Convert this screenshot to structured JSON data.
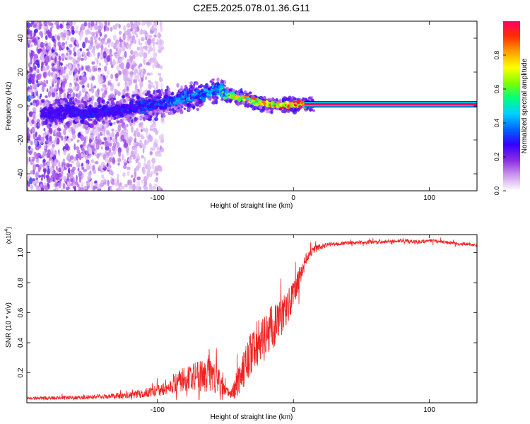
{
  "title": "C2E5.2025.078.01.36.G11",
  "chart_data": [
    {
      "type": "heatmap",
      "xlabel": "Height of straight line (km)",
      "ylabel": "Frequency (Hz)",
      "xlim": [
        -196,
        135
      ],
      "ylim": [
        -50,
        50
      ],
      "xticks": [
        -100,
        0,
        100
      ],
      "yticks": [
        -40,
        -20,
        0,
        20,
        40
      ],
      "colorbar": {
        "label": "Normalized spectral amplitude",
        "range": [
          0,
          1
        ],
        "ticks": [
          "0.0",
          "0.2",
          "0.4",
          "0.6",
          "0.8"
        ],
        "tick_values": [
          0,
          0.2,
          0.4,
          0.6,
          0.8
        ],
        "colors": [
          "#ffffff",
          "#cc99ee",
          "#8a2be2",
          "#3300ff",
          "#0066ff",
          "#00d0ff",
          "#00ff80",
          "#80ff00",
          "#ffff00",
          "#ffa000",
          "#ff3000",
          "#ff0066"
        ]
      },
      "ridge": {
        "x": [
          -175,
          -160,
          -150,
          -140,
          -130,
          -120,
          -110,
          -100,
          -90,
          -80,
          -70,
          -60,
          -55,
          -50,
          -45,
          -40,
          -30,
          -20,
          -10,
          0,
          10,
          135
        ],
        "freq_hz": [
          -4,
          -3,
          -4,
          -3,
          -2,
          -1,
          0,
          1,
          3,
          5,
          6,
          8,
          10,
          7,
          6,
          5,
          3,
          1,
          0,
          1,
          1,
          1
        ],
        "strength": [
          0.25,
          0.3,
          0.3,
          0.3,
          0.3,
          0.3,
          0.35,
          0.35,
          0.4,
          0.45,
          0.45,
          0.45,
          0.5,
          0.6,
          0.75,
          0.8,
          0.85,
          0.9,
          0.95,
          1.0,
          1.0,
          1.0
        ]
      }
    },
    {
      "type": "line",
      "xlabel": "Height of straight line (km)",
      "ylabel": "SNR (10 * v/v)",
      "y_multiplier": "(x10",
      "y_multiplier_exp": "4",
      "y_multiplier_close": ")",
      "xlim": [
        -196,
        135
      ],
      "ylim": [
        0,
        1.12
      ],
      "xticks": [
        -100,
        0,
        100
      ],
      "yticks": [
        0.2,
        0.4,
        0.6,
        0.8,
        1.0
      ],
      "ytick_labels": [
        "0.2",
        "0.4",
        "0.6",
        "0.8",
        "1.0"
      ],
      "color": "#ee2222",
      "envelope": {
        "x": [
          -196,
          -160,
          -120,
          -100,
          -90,
          -80,
          -70,
          -60,
          -55,
          -50,
          -45,
          -40,
          -35,
          -30,
          -25,
          -20,
          -15,
          -10,
          -5,
          0,
          5,
          10,
          15,
          20,
          25,
          30,
          40,
          60,
          80,
          90,
          100,
          120,
          135
        ],
        "mean": [
          0.03,
          0.035,
          0.05,
          0.08,
          0.12,
          0.16,
          0.18,
          0.2,
          0.15,
          0.07,
          0.06,
          0.15,
          0.25,
          0.35,
          0.4,
          0.45,
          0.5,
          0.55,
          0.62,
          0.72,
          0.85,
          0.97,
          1.02,
          1.04,
          1.05,
          1.06,
          1.065,
          1.07,
          1.08,
          1.07,
          1.08,
          1.06,
          1.05
        ],
        "noise": [
          0.01,
          0.012,
          0.02,
          0.04,
          0.06,
          0.08,
          0.1,
          0.13,
          0.09,
          0.04,
          0.05,
          0.1,
          0.13,
          0.15,
          0.17,
          0.17,
          0.15,
          0.13,
          0.12,
          0.1,
          0.07,
          0.04,
          0.025,
          0.02,
          0.015,
          0.015,
          0.012,
          0.012,
          0.012,
          0.014,
          0.012,
          0.012,
          0.012
        ]
      }
    }
  ]
}
